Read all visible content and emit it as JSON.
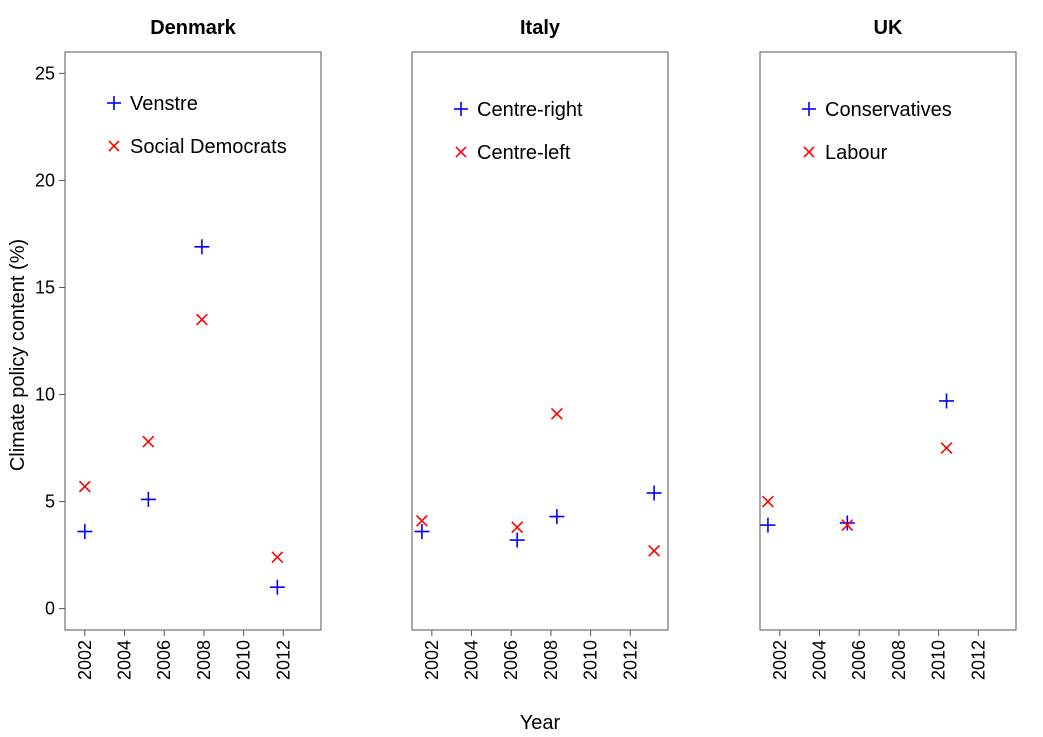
{
  "figure": {
    "ylabel": "Climate policy content (%)",
    "xlabel": "Year",
    "ylim": [
      -1,
      26
    ],
    "yticks": [
      0,
      5,
      10,
      15,
      20,
      25
    ],
    "xlim": [
      2001,
      2013.9
    ],
    "xticks": [
      2002,
      2004,
      2006,
      2008,
      2010,
      2012
    ],
    "colors": {
      "right": "#0000ff",
      "left": "#ff0000",
      "axis": "#555555"
    },
    "markers": {
      "right": "plus",
      "left": "cross"
    }
  },
  "chart_data": [
    {
      "type": "scatter",
      "title": "Denmark",
      "legend_position": "top-left",
      "series": [
        {
          "name": "Venstre",
          "marker": "plus",
          "color": "#0000ff",
          "points": [
            {
              "x": 2002.0,
              "y": 3.6
            },
            {
              "x": 2005.2,
              "y": 5.1
            },
            {
              "x": 2007.9,
              "y": 16.9
            },
            {
              "x": 2011.7,
              "y": 1.0
            }
          ]
        },
        {
          "name": "Social Democrats",
          "marker": "cross",
          "color": "#ff0000",
          "points": [
            {
              "x": 2002.0,
              "y": 5.7
            },
            {
              "x": 2005.2,
              "y": 7.8
            },
            {
              "x": 2007.9,
              "y": 13.5
            },
            {
              "x": 2011.7,
              "y": 2.4
            }
          ]
        }
      ]
    },
    {
      "type": "scatter",
      "title": "Italy",
      "legend_position": "top-left",
      "series": [
        {
          "name": "Centre-right",
          "marker": "plus",
          "color": "#0000ff",
          "points": [
            {
              "x": 2001.5,
              "y": 3.6
            },
            {
              "x": 2006.3,
              "y": 3.2
            },
            {
              "x": 2008.3,
              "y": 4.3
            },
            {
              "x": 2013.2,
              "y": 5.4
            }
          ]
        },
        {
          "name": "Centre-left",
          "marker": "cross",
          "color": "#ff0000",
          "points": [
            {
              "x": 2001.5,
              "y": 4.1
            },
            {
              "x": 2006.3,
              "y": 3.8
            },
            {
              "x": 2008.3,
              "y": 9.1
            },
            {
              "x": 2013.2,
              "y": 2.7
            }
          ]
        }
      ]
    },
    {
      "type": "scatter",
      "title": "UK",
      "legend_position": "top-left",
      "series": [
        {
          "name": "Conservatives",
          "marker": "plus",
          "color": "#0000ff",
          "points": [
            {
              "x": 2001.4,
              "y": 3.9
            },
            {
              "x": 2005.4,
              "y": 4.0
            },
            {
              "x": 2010.4,
              "y": 9.7
            }
          ]
        },
        {
          "name": "Labour",
          "marker": "cross",
          "color": "#ff0000",
          "points": [
            {
              "x": 2001.4,
              "y": 5.0
            },
            {
              "x": 2005.4,
              "y": 3.9
            },
            {
              "x": 2010.4,
              "y": 7.5
            }
          ]
        }
      ]
    }
  ]
}
